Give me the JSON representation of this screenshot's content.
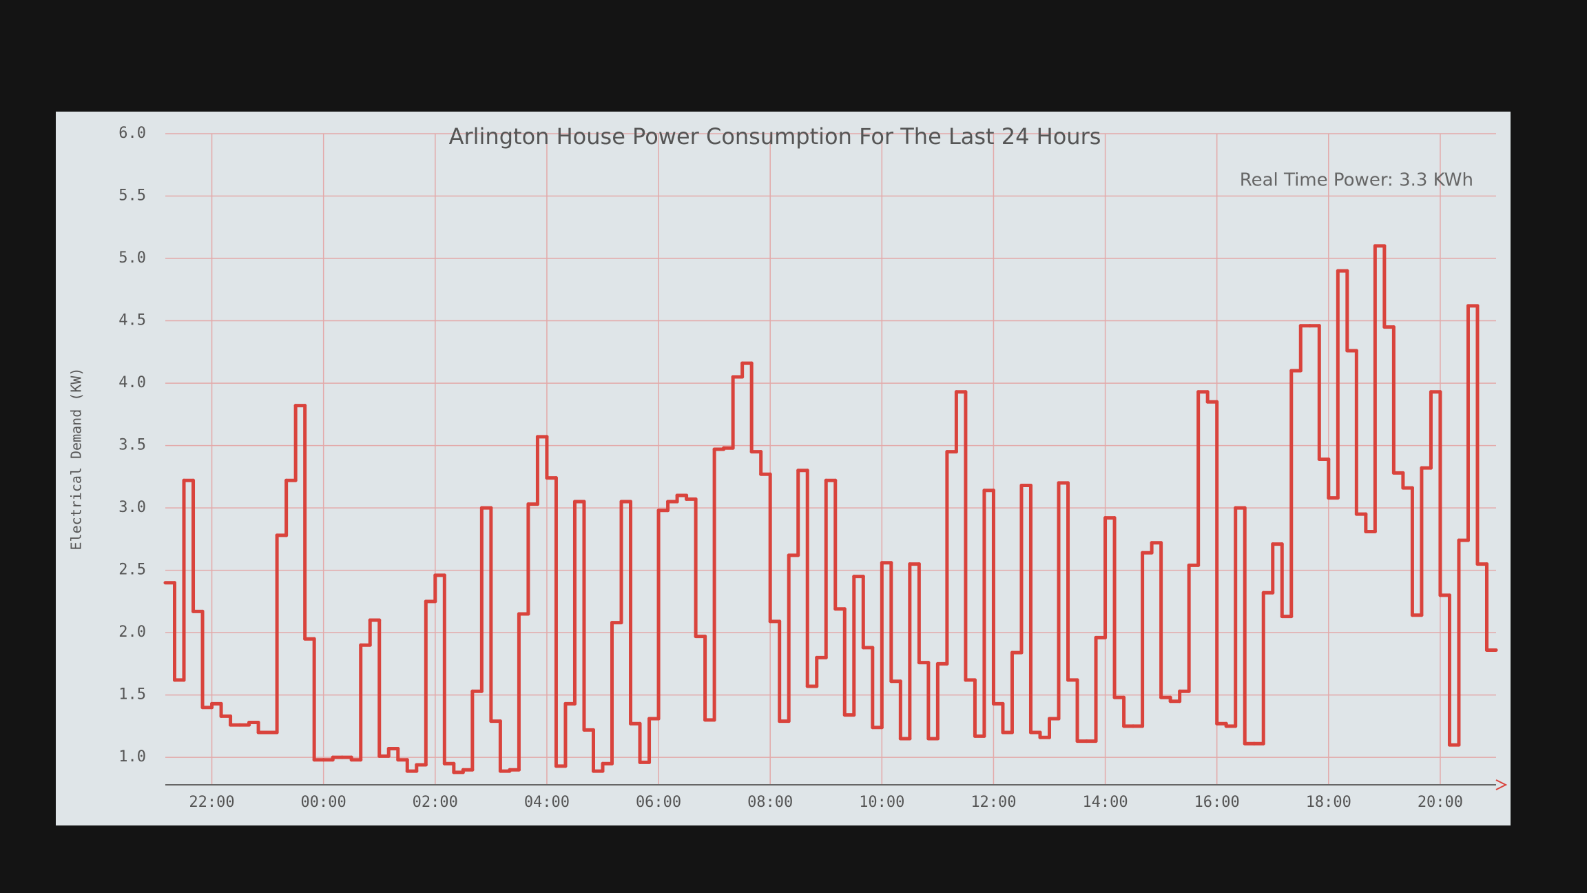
{
  "chart_data": {
    "type": "step",
    "title": "Arlington House Power Consumption For The Last 24 Hours",
    "annotation": "Real Time Power: 3.3 KWh",
    "y_label": "Electrical Demand (KW)",
    "xlim": [
      1270,
      2700
    ],
    "xticks": [
      {
        "value": 1320,
        "label": "22:00"
      },
      {
        "value": 1440,
        "label": "00:00"
      },
      {
        "value": 1560,
        "label": "02:00"
      },
      {
        "value": 1680,
        "label": "04:00"
      },
      {
        "value": 1800,
        "label": "06:00"
      },
      {
        "value": 1920,
        "label": "08:00"
      },
      {
        "value": 2040,
        "label": "10:00"
      },
      {
        "value": 2160,
        "label": "12:00"
      },
      {
        "value": 2280,
        "label": "14:00"
      },
      {
        "value": 2400,
        "label": "16:00"
      },
      {
        "value": 2520,
        "label": "18:00"
      },
      {
        "value": 2640,
        "label": "20:00"
      }
    ],
    "ylim": [
      0.78,
      6.0
    ],
    "yticks": [
      {
        "value": 1.0,
        "label": "1.0"
      },
      {
        "value": 1.5,
        "label": "1.5"
      },
      {
        "value": 2.0,
        "label": "2.0"
      },
      {
        "value": 2.5,
        "label": "2.5"
      },
      {
        "value": 3.0,
        "label": "3.0"
      },
      {
        "value": 3.5,
        "label": "3.5"
      },
      {
        "value": 4.0,
        "label": "4.0"
      },
      {
        "value": 4.5,
        "label": "4.5"
      },
      {
        "value": 5.0,
        "label": "5.0"
      },
      {
        "value": 5.5,
        "label": "5.5"
      },
      {
        "value": 6.0,
        "label": "6.0"
      }
    ],
    "grid": true,
    "color": "#d9433c",
    "x": [
      1270,
      1280,
      1290,
      1300,
      1310,
      1320,
      1330,
      1340,
      1350,
      1360,
      1370,
      1380,
      1390,
      1400,
      1410,
      1420,
      1430,
      1440,
      1450,
      1460,
      1470,
      1480,
      1490,
      1500,
      1510,
      1520,
      1530,
      1540,
      1550,
      1560,
      1570,
      1580,
      1590,
      1600,
      1610,
      1620,
      1630,
      1640,
      1650,
      1660,
      1670,
      1680,
      1690,
      1700,
      1710,
      1720,
      1730,
      1740,
      1750,
      1760,
      1770,
      1780,
      1790,
      1800,
      1810,
      1820,
      1830,
      1840,
      1850,
      1860,
      1870,
      1880,
      1890,
      1900,
      1910,
      1920,
      1930,
      1940,
      1950,
      1960,
      1970,
      1980,
      1990,
      2000,
      2010,
      2020,
      2030,
      2040,
      2050,
      2060,
      2070,
      2080,
      2090,
      2100,
      2110,
      2120,
      2130,
      2140,
      2150,
      2160,
      2170,
      2180,
      2190,
      2200,
      2210,
      2220,
      2230,
      2240,
      2250,
      2260,
      2270,
      2280,
      2290,
      2300,
      2310,
      2320,
      2330,
      2340,
      2350,
      2360,
      2370,
      2380,
      2390,
      2400,
      2410,
      2420,
      2430,
      2440,
      2450,
      2460,
      2470,
      2480,
      2490,
      2500,
      2510,
      2520,
      2530,
      2540,
      2550,
      2560,
      2570,
      2580,
      2590,
      2600,
      2610,
      2620,
      2630,
      2640,
      2650,
      2660,
      2670,
      2680,
      2690
    ],
    "values": [
      2.4,
      1.62,
      3.22,
      2.17,
      1.4,
      1.43,
      1.33,
      1.26,
      1.26,
      1.28,
      1.2,
      1.2,
      2.78,
      3.22,
      3.82,
      1.95,
      0.98,
      0.98,
      1.0,
      1.0,
      0.98,
      1.9,
      2.1,
      1.01,
      1.07,
      0.98,
      0.89,
      0.94,
      2.25,
      2.46,
      0.95,
      0.88,
      0.9,
      1.53,
      3.0,
      1.29,
      0.89,
      0.9,
      2.15,
      3.03,
      3.57,
      3.24,
      0.93,
      1.43,
      3.05,
      1.22,
      0.89,
      0.95,
      2.08,
      3.05,
      1.27,
      0.96,
      1.31,
      2.98,
      3.05,
      3.1,
      3.07,
      1.97,
      1.3,
      3.47,
      3.48,
      4.05,
      4.16,
      3.45,
      3.27,
      2.09,
      1.29,
      2.62,
      3.3,
      1.57,
      1.8,
      3.22,
      2.19,
      1.34,
      2.45,
      1.88,
      1.24,
      2.56,
      1.61,
      1.15,
      2.55,
      1.76,
      1.15,
      1.75,
      3.45,
      3.93,
      1.62,
      1.17,
      3.14,
      1.43,
      1.2,
      1.84,
      3.18,
      1.2,
      1.16,
      1.31,
      3.2,
      1.62,
      1.13,
      1.13,
      1.96,
      2.92,
      1.48,
      1.25,
      1.25,
      2.64,
      2.72,
      1.48,
      1.45,
      1.53,
      2.54,
      3.93,
      3.85,
      1.27,
      1.25,
      3.0,
      1.11,
      1.11,
      2.32,
      2.71,
      2.13,
      4.1,
      4.46,
      4.46,
      3.39,
      3.08,
      4.9,
      4.26,
      2.95,
      2.81,
      5.1,
      4.45,
      3.28,
      3.16,
      2.14,
      3.32,
      3.93,
      2.3,
      1.1,
      2.74,
      4.62,
      2.55,
      1.86
    ]
  }
}
